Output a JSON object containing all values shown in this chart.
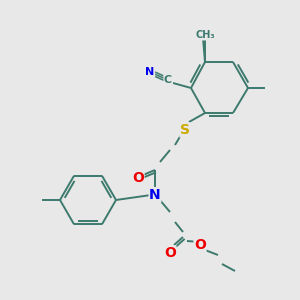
{
  "bg": "#e8e8e8",
  "bond_color": "#3d7a6e",
  "atom_colors": {
    "N": "#0000ee",
    "O": "#ee0000",
    "S": "#ccaa00",
    "C": "#3d7a6e"
  },
  "lw": 1.4,
  "figsize": [
    3.0,
    3.0
  ],
  "dpi": 100
}
